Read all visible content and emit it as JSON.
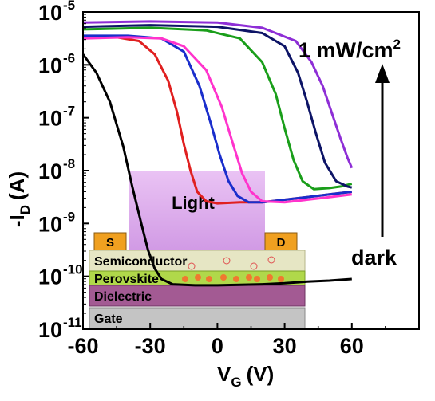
{
  "chart_data": {
    "type": "line",
    "title": "",
    "xlabel": {
      "main": "V",
      "sub": "G",
      "unit": "(V)"
    },
    "ylabel": {
      "main": "-I",
      "sub": "D",
      "unit": "(A)"
    },
    "xlim": [
      -60,
      90
    ],
    "ylim_log10": [
      -11,
      -5
    ],
    "y_scale": "log",
    "x_ticks": [
      -60,
      -30,
      0,
      30,
      60
    ],
    "x_tick_labels": [
      "-60",
      "-30",
      "0",
      "30",
      "60"
    ],
    "y_ticks_exp": [
      -5,
      -6,
      -7,
      -8,
      -9,
      -10,
      -11
    ],
    "y_tick_base": "10",
    "y_tick_exp_labels": [
      "-5",
      "-6",
      "-7",
      "-8",
      "-9",
      "-10",
      "-11"
    ],
    "series": [
      {
        "color": "#000000",
        "points": [
          [
            -60,
            -5.8
          ],
          [
            -54,
            -6.15
          ],
          [
            -48,
            -6.7
          ],
          [
            -42,
            -7.55
          ],
          [
            -38,
            -8.3
          ],
          [
            -34,
            -9.0
          ],
          [
            -31,
            -9.5
          ],
          [
            -28,
            -9.85
          ],
          [
            -25,
            -10.05
          ],
          [
            -20,
            -10.15
          ],
          [
            -10,
            -10.17
          ],
          [
            0,
            -10.17
          ],
          [
            10,
            -10.16
          ],
          [
            20,
            -10.15
          ],
          [
            30,
            -10.13
          ],
          [
            40,
            -10.1
          ],
          [
            50,
            -10.08
          ],
          [
            60,
            -10.05
          ]
        ]
      },
      {
        "color": "#e02020",
        "points": [
          [
            -60,
            -5.47
          ],
          [
            -45,
            -5.48
          ],
          [
            -35,
            -5.55
          ],
          [
            -28,
            -5.8
          ],
          [
            -22,
            -6.3
          ],
          [
            -18,
            -6.9
          ],
          [
            -15,
            -7.5
          ],
          [
            -12,
            -8.0
          ],
          [
            -9,
            -8.4
          ],
          [
            -5,
            -8.58
          ],
          [
            0,
            -8.62
          ],
          [
            10,
            -8.6
          ],
          [
            20,
            -8.6
          ],
          [
            30,
            -8.55
          ],
          [
            40,
            -8.5
          ],
          [
            50,
            -8.45
          ],
          [
            60,
            -8.4
          ]
        ]
      },
      {
        "color": "#1a2ecc",
        "points": [
          [
            -60,
            -5.45
          ],
          [
            -40,
            -5.45
          ],
          [
            -25,
            -5.5
          ],
          [
            -15,
            -5.75
          ],
          [
            -8,
            -6.4
          ],
          [
            -3,
            -7.1
          ],
          [
            1,
            -7.7
          ],
          [
            5,
            -8.2
          ],
          [
            9,
            -8.48
          ],
          [
            14,
            -8.6
          ],
          [
            20,
            -8.6
          ],
          [
            30,
            -8.55
          ],
          [
            40,
            -8.5
          ],
          [
            50,
            -8.45
          ],
          [
            60,
            -8.4
          ]
        ]
      },
      {
        "color": "#ff33cc",
        "points": [
          [
            -60,
            -5.5
          ],
          [
            -40,
            -5.48
          ],
          [
            -25,
            -5.5
          ],
          [
            -15,
            -5.65
          ],
          [
            -5,
            -6.1
          ],
          [
            2,
            -6.8
          ],
          [
            7,
            -7.5
          ],
          [
            11,
            -8.05
          ],
          [
            15,
            -8.4
          ],
          [
            20,
            -8.58
          ],
          [
            30,
            -8.6
          ],
          [
            40,
            -8.55
          ],
          [
            50,
            -8.5
          ],
          [
            60,
            -8.45
          ]
        ]
      },
      {
        "color": "#1a9e1a",
        "points": [
          [
            -60,
            -5.33
          ],
          [
            -30,
            -5.3
          ],
          [
            -5,
            -5.35
          ],
          [
            10,
            -5.5
          ],
          [
            20,
            -5.95
          ],
          [
            26,
            -6.55
          ],
          [
            30,
            -7.2
          ],
          [
            34,
            -7.8
          ],
          [
            38,
            -8.2
          ],
          [
            43,
            -8.35
          ],
          [
            50,
            -8.33
          ],
          [
            55,
            -8.3
          ],
          [
            60,
            -8.25
          ]
        ]
      },
      {
        "color": "#0d1466",
        "points": [
          [
            -60,
            -5.28
          ],
          [
            -30,
            -5.25
          ],
          [
            0,
            -5.28
          ],
          [
            20,
            -5.4
          ],
          [
            30,
            -5.65
          ],
          [
            36,
            -6.15
          ],
          [
            40,
            -6.7
          ],
          [
            44,
            -7.3
          ],
          [
            48,
            -7.85
          ],
          [
            53,
            -8.2
          ],
          [
            58,
            -8.3
          ],
          [
            60,
            -8.32
          ]
        ]
      },
      {
        "color": "#8e2ed6",
        "points": [
          [
            -60,
            -5.2
          ],
          [
            -30,
            -5.18
          ],
          [
            0,
            -5.2
          ],
          [
            20,
            -5.3
          ],
          [
            35,
            -5.55
          ],
          [
            42,
            -5.95
          ],
          [
            47,
            -6.4
          ],
          [
            51,
            -6.9
          ],
          [
            55,
            -7.4
          ],
          [
            58,
            -7.75
          ],
          [
            60,
            -7.95
          ]
        ]
      }
    ],
    "annotations": {
      "top_label": "1 mW/cm",
      "top_label_sup": "2",
      "bottom_label": "dark",
      "arrow": "upward"
    },
    "inset_device": {
      "layers": [
        "Semiconductor",
        "Perovskite",
        "Dielectric",
        "Gate"
      ],
      "source": "S",
      "drain": "D",
      "light_label": "Light",
      "colors": {
        "semiconductor": "#e6e6c4",
        "perovskite": "#b0d84a",
        "dielectric": "#a35a93",
        "gate": "#c4c4c4",
        "electrode": "#f0a020",
        "light": "#d8a0ea",
        "particle": "#f07830"
      }
    }
  }
}
